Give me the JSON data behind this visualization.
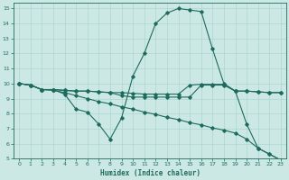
{
  "bg_color": "#cce8e5",
  "grid_color": "#add4cf",
  "line_color": "#1e6b5e",
  "xlabel": "Humidex (Indice chaleur)",
  "xlim": [
    -0.5,
    23.5
  ],
  "ylim": [
    5,
    15.4
  ],
  "xticks": [
    0,
    1,
    2,
    3,
    4,
    5,
    6,
    7,
    8,
    9,
    10,
    11,
    12,
    13,
    14,
    15,
    16,
    17,
    18,
    19,
    20,
    21,
    22,
    23
  ],
  "yticks": [
    5,
    6,
    7,
    8,
    9,
    10,
    11,
    12,
    13,
    14,
    15
  ],
  "line_diagonal_x": [
    0,
    1,
    2,
    3,
    4,
    5,
    6,
    7,
    8,
    9,
    10,
    11,
    12,
    13,
    14,
    15,
    16,
    17,
    18,
    19,
    20,
    21,
    22,
    23
  ],
  "line_diagonal_y": [
    10.0,
    9.9,
    9.6,
    9.55,
    9.4,
    9.2,
    9.0,
    8.8,
    8.65,
    8.45,
    8.3,
    8.1,
    7.95,
    7.75,
    7.6,
    7.4,
    7.25,
    7.05,
    6.9,
    6.7,
    6.3,
    5.7,
    5.3,
    4.9
  ],
  "line_arch_x": [
    0,
    1,
    2,
    3,
    4,
    5,
    6,
    7,
    8,
    9,
    10,
    11,
    12,
    13,
    14,
    15,
    16,
    17,
    18,
    19,
    20,
    21,
    22,
    23
  ],
  "line_arch_y": [
    10.0,
    9.9,
    9.6,
    9.6,
    9.3,
    8.3,
    8.1,
    7.3,
    6.3,
    7.7,
    10.5,
    12.0,
    14.0,
    14.7,
    15.0,
    14.9,
    14.8,
    12.3,
    10.0,
    9.5,
    7.3,
    5.7,
    5.3,
    4.9
  ],
  "line_flat1_x": [
    0,
    1,
    2,
    3,
    4,
    5,
    6,
    7,
    8,
    9,
    10,
    11,
    12,
    13,
    14,
    15,
    16,
    17,
    18,
    19,
    20,
    21,
    22,
    23
  ],
  "line_flat1_y": [
    10.0,
    9.9,
    9.6,
    9.6,
    9.55,
    9.5,
    9.5,
    9.45,
    9.4,
    9.4,
    9.35,
    9.3,
    9.3,
    9.3,
    9.3,
    9.9,
    9.95,
    9.95,
    9.95,
    9.5,
    9.5,
    9.45,
    9.4,
    9.4
  ],
  "line_flat2_x": [
    0,
    1,
    2,
    3,
    4,
    5,
    6,
    7,
    8,
    9,
    10,
    11,
    12,
    13,
    14,
    15,
    16,
    17,
    18,
    19,
    20,
    21,
    22,
    23
  ],
  "line_flat2_y": [
    10.0,
    9.9,
    9.6,
    9.6,
    9.55,
    9.5,
    9.5,
    9.45,
    9.4,
    9.2,
    9.1,
    9.1,
    9.1,
    9.1,
    9.1,
    9.1,
    9.9,
    9.9,
    9.9,
    9.5,
    9.5,
    9.45,
    9.4,
    9.4
  ]
}
